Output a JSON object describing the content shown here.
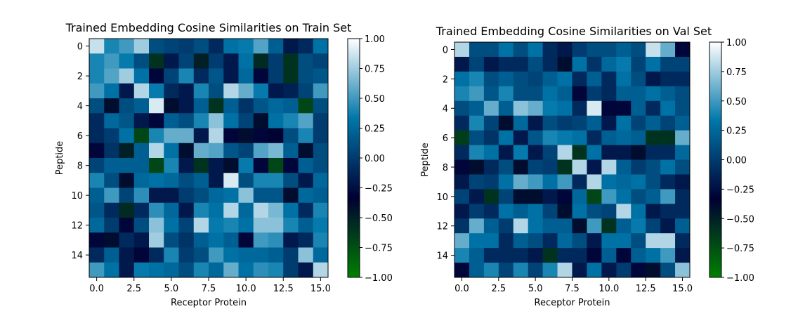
{
  "chart_data": [
    {
      "type": "heatmap",
      "title": "Trained Embedding Cosine Similarities on Train Set",
      "xlabel": "Receptor Protein",
      "ylabel": "Peptide",
      "x_ticks": [
        "0.0",
        "2.5",
        "5.0",
        "7.5",
        "10.0",
        "12.5",
        "15.0"
      ],
      "y_ticks": [
        "0",
        "2",
        "4",
        "6",
        "8",
        "10",
        "12",
        "14"
      ],
      "colorbar_ticks": [
        "1.00",
        "0.75",
        "0.50",
        "0.25",
        "0.00",
        "−0.25",
        "−0.50",
        "−0.75",
        "−1.00"
      ],
      "vmin": -1.0,
      "vmax": 1.0,
      "colormap": [
        "#008000",
        "#000033",
        "#0077aa",
        "#ffffff"
      ],
      "matrix": [
        [
          0.85,
          0.4,
          0.5,
          0.75,
          0.1,
          0.05,
          0.0,
          0.1,
          -0.1,
          0.3,
          0.35,
          0.55,
          0.2,
          -0.2,
          -0.1,
          0.3
        ],
        [
          0.4,
          0.5,
          0.35,
          0.1,
          -0.6,
          -0.2,
          0.05,
          -0.5,
          0.0,
          -0.2,
          0.3,
          -0.55,
          0.0,
          -0.6,
          0.1,
          0.05
        ],
        [
          0.4,
          0.55,
          0.75,
          0.3,
          -0.3,
          0.05,
          0.4,
          -0.1,
          0.15,
          -0.2,
          0.25,
          -0.3,
          0.0,
          -0.6,
          0.1,
          0.15
        ],
        [
          0.5,
          0.3,
          -0.2,
          0.8,
          0.35,
          -0.1,
          -0.2,
          0.4,
          0.1,
          0.8,
          0.6,
          0.35,
          -0.2,
          -0.15,
          0.05,
          0.5
        ],
        [
          0.1,
          -0.4,
          0.1,
          0.2,
          0.9,
          -0.4,
          -0.2,
          0.2,
          -0.6,
          0.2,
          -0.05,
          0.15,
          0.25,
          0.2,
          -0.7,
          0.1
        ],
        [
          -0.1,
          0.25,
          0.15,
          -0.2,
          -0.3,
          0.2,
          0.1,
          0.4,
          0.7,
          0.3,
          0.05,
          -0.4,
          0.3,
          0.4,
          0.55,
          0.0
        ],
        [
          -0.1,
          0.0,
          0.3,
          -0.7,
          0.4,
          0.6,
          0.6,
          -0.2,
          0.8,
          -0.3,
          -0.4,
          -0.3,
          -0.35,
          0.1,
          0.4,
          0.0
        ],
        [
          -0.3,
          -0.05,
          -0.5,
          0.2,
          0.8,
          0.3,
          -0.4,
          0.6,
          0.55,
          0.15,
          0.05,
          0.55,
          0.65,
          0.2,
          -0.4,
          0.1
        ],
        [
          0.05,
          0.2,
          0.2,
          0.2,
          -0.7,
          0.4,
          -0.2,
          -0.6,
          -0.2,
          -0.4,
          0.35,
          -0.3,
          -0.7,
          -0.3,
          0.2,
          0.1
        ],
        [
          0.4,
          0.1,
          -0.4,
          0.25,
          0.3,
          0.25,
          0.1,
          0.2,
          -0.2,
          0.9,
          0.1,
          0.4,
          0.4,
          0.1,
          -0.2,
          0.25
        ],
        [
          0.2,
          0.5,
          0.05,
          0.45,
          -0.2,
          -0.2,
          0.0,
          0.1,
          0.25,
          0.3,
          0.7,
          0.15,
          0.15,
          -0.4,
          0.25,
          0.2
        ],
        [
          0.15,
          -0.1,
          -0.55,
          -0.1,
          0.45,
          0.25,
          -0.2,
          0.4,
          0.3,
          0.8,
          0.25,
          0.8,
          0.65,
          0.3,
          -0.1,
          0.4
        ],
        [
          0.25,
          0.0,
          -0.3,
          0.1,
          0.7,
          0.3,
          0.05,
          0.8,
          0.35,
          0.4,
          0.3,
          0.7,
          0.7,
          0.4,
          0.2,
          0.35
        ],
        [
          -0.3,
          -0.4,
          -0.1,
          -0.2,
          0.75,
          0.1,
          -0.05,
          0.2,
          0.3,
          0.2,
          -0.3,
          0.5,
          0.45,
          -0.2,
          -0.1,
          0.4
        ],
        [
          -0.1,
          0.2,
          -0.2,
          -0.3,
          -0.1,
          0.4,
          0.0,
          0.1,
          0.5,
          0.3,
          0.25,
          0.25,
          0.2,
          0.0,
          0.7,
          0.25
        ],
        [
          0.5,
          0.3,
          -0.2,
          0.35,
          0.3,
          0.25,
          0.1,
          0.4,
          0.25,
          0.6,
          0.3,
          0.45,
          0.4,
          0.0,
          -0.2,
          0.8
        ]
      ]
    },
    {
      "type": "heatmap",
      "title": "Trained Embedding Cosine Similarities on Val Set",
      "xlabel": "Receptor Protein",
      "ylabel": "Peptide",
      "x_ticks": [
        "0.0",
        "2.5",
        "5.0",
        "7.5",
        "10.0",
        "12.5",
        "15.0"
      ],
      "y_ticks": [
        "0",
        "2",
        "4",
        "6",
        "8",
        "10",
        "12",
        "14"
      ],
      "colorbar_ticks": [
        "1.00",
        "0.75",
        "0.50",
        "0.25",
        "0.00",
        "−0.25",
        "−0.50",
        "−0.75",
        "−1.00"
      ],
      "vmin": -1.0,
      "vmax": 1.0,
      "colormap": [
        "#008000",
        "#000033",
        "#0077aa",
        "#ffffff"
      ],
      "matrix": [
        [
          0.8,
          0.1,
          0.1,
          0.3,
          0.1,
          0.3,
          -0.1,
          -0.2,
          0.0,
          0.1,
          0.1,
          0.2,
          0.1,
          0.85,
          0.6,
          -0.3
        ],
        [
          -0.2,
          0.05,
          -0.2,
          -0.1,
          -0.1,
          0.1,
          -0.1,
          -0.4,
          0.3,
          -0.05,
          0.25,
          0.35,
          0.05,
          0.3,
          0.05,
          0.05
        ],
        [
          0.3,
          0.4,
          0.1,
          0.2,
          0.1,
          0.05,
          0.2,
          0.3,
          -0.1,
          0.2,
          -0.1,
          0.3,
          0.1,
          -0.2,
          -0.1,
          -0.1
        ],
        [
          0.4,
          0.5,
          0.15,
          0.4,
          0.1,
          0.1,
          0.3,
          0.2,
          -0.3,
          0.0,
          -0.1,
          0.2,
          0.2,
          0.3,
          0.2,
          0.1
        ],
        [
          0.1,
          0.2,
          0.6,
          0.2,
          0.7,
          0.6,
          0.35,
          0.3,
          -0.1,
          0.9,
          -0.3,
          -0.3,
          0.2,
          -0.1,
          0.3,
          0.1
        ],
        [
          -0.1,
          0.4,
          0.05,
          -0.4,
          0.25,
          -0.2,
          0.1,
          0.0,
          0.05,
          0.2,
          -0.2,
          0.3,
          0.05,
          0.2,
          0.05,
          0.2
        ],
        [
          -0.65,
          0.1,
          -0.05,
          0.3,
          -0.2,
          0.15,
          0.4,
          0.35,
          0.3,
          -0.1,
          0.2,
          0.25,
          0.2,
          -0.6,
          -0.6,
          0.6
        ],
        [
          -0.1,
          0.4,
          0.3,
          -0.2,
          0.35,
          -0.2,
          0.05,
          0.8,
          -0.6,
          0.3,
          -0.2,
          -0.2,
          -0.4,
          -0.1,
          -0.1,
          0.25
        ],
        [
          -0.3,
          -0.4,
          -0.1,
          0.1,
          -0.4,
          0.05,
          0.0,
          -0.6,
          0.8,
          -0.2,
          0.8,
          0.2,
          0.0,
          0.1,
          0.3,
          0.1
        ],
        [
          -0.2,
          0.05,
          0.0,
          0.3,
          0.6,
          0.5,
          0.3,
          0.5,
          -0.1,
          0.8,
          0.3,
          0.25,
          0.3,
          0.1,
          -0.1,
          -0.2
        ],
        [
          0.05,
          -0.2,
          -0.6,
          0.05,
          -0.4,
          -0.4,
          -0.2,
          -0.3,
          0.25,
          -0.7,
          0.5,
          0.3,
          0.1,
          0.2,
          0.5,
          -0.1
        ],
        [
          -0.2,
          0.0,
          -0.1,
          0.3,
          0.2,
          0.3,
          0.05,
          -0.4,
          0.3,
          0.1,
          0.05,
          0.8,
          0.3,
          -0.2,
          -0.1,
          -0.1
        ],
        [
          -0.05,
          0.6,
          0.2,
          0.0,
          0.8,
          0.3,
          0.2,
          0.2,
          -0.4,
          0.5,
          -0.6,
          0.2,
          0.35,
          0.05,
          -0.2,
          0.2
        ],
        [
          0.6,
          0.3,
          0.3,
          -0.1,
          0.2,
          0.1,
          -0.1,
          0.25,
          0.1,
          -0.2,
          0.3,
          0.3,
          0.1,
          0.8,
          0.8,
          -0.1
        ],
        [
          0.4,
          0.2,
          -0.1,
          -0.1,
          -0.1,
          -0.2,
          -0.6,
          -0.1,
          -0.1,
          -0.3,
          0.2,
          -0.3,
          0.2,
          0.3,
          0.5,
          -0.2
        ],
        [
          -0.3,
          0.2,
          0.4,
          0.05,
          0.4,
          0.05,
          0.4,
          0.8,
          -0.2,
          0.3,
          -0.2,
          0.0,
          -0.3,
          -0.4,
          0.1,
          0.7
        ]
      ]
    }
  ]
}
